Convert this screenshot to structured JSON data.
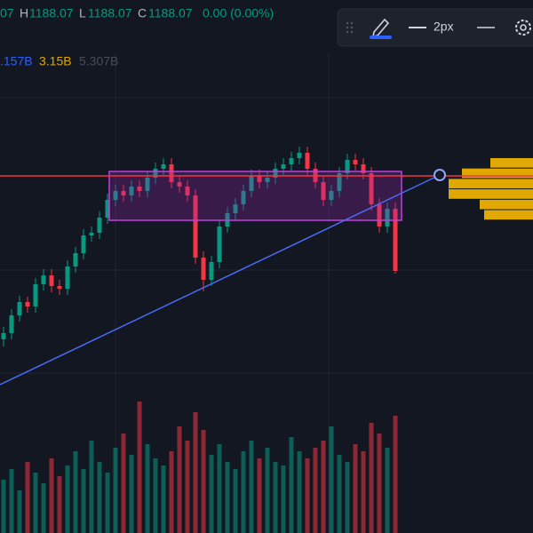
{
  "legend": {
    "row1": [
      "07",
      "H",
      "1188.07",
      "L",
      "1188.07",
      "C",
      "1188.07",
      "0.00 (0.00%)"
    ],
    "row2": [
      ".157B",
      "3.15B",
      "5.307B"
    ]
  },
  "toolbar": {
    "width_label": "2px"
  },
  "chart_data": {
    "type": "candlestick",
    "ylim": [
      900,
      1500
    ],
    "y2lim": [
      0,
      400
    ],
    "up_color": "#089981",
    "down_color": "#f23645",
    "profile_color": "#e0a800",
    "ohlc": [
      [
        1118,
        1132,
        1110,
        1125
      ],
      [
        1125,
        1152,
        1118,
        1145
      ],
      [
        1145,
        1167,
        1138,
        1160
      ],
      [
        1160,
        1166,
        1148,
        1155
      ],
      [
        1155,
        1187,
        1148,
        1180
      ],
      [
        1180,
        1197,
        1173,
        1190
      ],
      [
        1190,
        1197,
        1171,
        1178
      ],
      [
        1178,
        1185,
        1168,
        1175
      ],
      [
        1175,
        1207,
        1168,
        1200
      ],
      [
        1200,
        1222,
        1193,
        1215
      ],
      [
        1215,
        1242,
        1208,
        1235
      ],
      [
        1235,
        1245,
        1228,
        1238
      ],
      [
        1238,
        1262,
        1231,
        1255
      ],
      [
        1255,
        1282,
        1248,
        1275
      ],
      [
        1275,
        1292,
        1268,
        1285
      ],
      [
        1285,
        1292,
        1273,
        1280
      ],
      [
        1280,
        1297,
        1273,
        1290
      ],
      [
        1290,
        1297,
        1278,
        1285
      ],
      [
        1285,
        1307,
        1278,
        1300
      ],
      [
        1300,
        1317,
        1293,
        1310
      ],
      [
        1310,
        1322,
        1303,
        1315
      ],
      [
        1315,
        1322,
        1288,
        1295
      ],
      [
        1295,
        1302,
        1283,
        1290
      ],
      [
        1290,
        1297,
        1273,
        1280
      ],
      [
        1280,
        1287,
        1203,
        1210
      ],
      [
        1210,
        1217,
        1172,
        1185
      ],
      [
        1185,
        1212,
        1178,
        1205
      ],
      [
        1205,
        1252,
        1198,
        1245
      ],
      [
        1245,
        1267,
        1238,
        1260
      ],
      [
        1260,
        1277,
        1253,
        1270
      ],
      [
        1270,
        1292,
        1263,
        1285
      ],
      [
        1285,
        1309,
        1278,
        1302
      ],
      [
        1302,
        1309,
        1288,
        1295
      ],
      [
        1295,
        1307,
        1288,
        1300
      ],
      [
        1300,
        1317,
        1293,
        1310
      ],
      [
        1310,
        1322,
        1303,
        1315
      ],
      [
        1315,
        1329,
        1308,
        1322
      ],
      [
        1322,
        1335,
        1315,
        1328
      ],
      [
        1328,
        1335,
        1303,
        1310
      ],
      [
        1310,
        1317,
        1288,
        1295
      ],
      [
        1295,
        1302,
        1268,
        1275
      ],
      [
        1275,
        1292,
        1268,
        1285
      ],
      [
        1285,
        1312,
        1278,
        1305
      ],
      [
        1305,
        1327,
        1298,
        1320
      ],
      [
        1320,
        1327,
        1308,
        1315
      ],
      [
        1315,
        1322,
        1298,
        1305
      ],
      [
        1305,
        1312,
        1263,
        1270
      ],
      [
        1270,
        1277,
        1238,
        1245
      ],
      [
        1245,
        1272,
        1238,
        1265
      ],
      [
        1265,
        1272,
        1192,
        1195
      ]
    ],
    "volumes": [
      150,
      180,
      120,
      200,
      170,
      140,
      210,
      160,
      190,
      230,
      180,
      260,
      200,
      170,
      240,
      280,
      220,
      370,
      250,
      210,
      190,
      230,
      300,
      260,
      340,
      290,
      220,
      250,
      200,
      180,
      230,
      260,
      210,
      240,
      200,
      190,
      270,
      230,
      210,
      240,
      260,
      300,
      220,
      200,
      250,
      230,
      310,
      280,
      240,
      330
    ],
    "volume_profile": [
      48,
      80,
      95,
      95,
      60,
      55
    ]
  }
}
